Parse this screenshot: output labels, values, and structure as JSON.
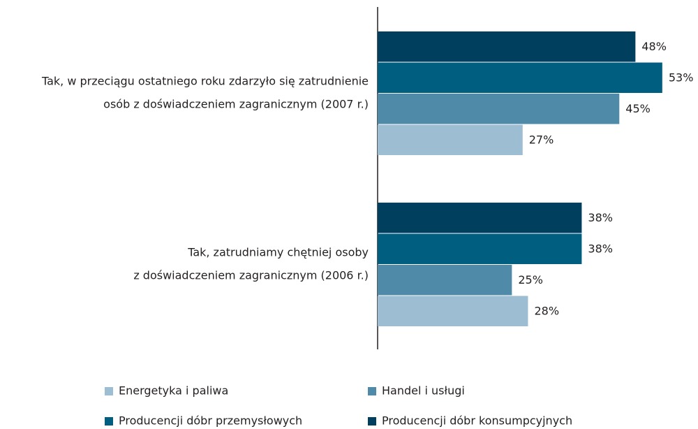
{
  "chart_data": {
    "type": "bar",
    "orientation": "horizontal",
    "categories": [
      [
        "Tak, w przeciągu ostatniego roku zdarzyło się zatrudnienie",
        "osób z doświadczeniem zagranicznym (2007 r.)"
      ],
      [
        "Tak, zatrudniamy chętniej osoby",
        "z doświadczeniem zagranicznym (2006 r.)"
      ]
    ],
    "series": [
      {
        "name": "Energetyka i paliwa",
        "color": "#9dbed2",
        "values": [
          27,
          28
        ],
        "value_labels": [
          "27%",
          "28%"
        ]
      },
      {
        "name": "Handel i usługi",
        "color": "#4f8aa9",
        "values": [
          45,
          25
        ],
        "value_labels": [
          "45%",
          "25%"
        ]
      },
      {
        "name": "Producencji dóbr przemysłowych",
        "color": "#005f80",
        "values": [
          53,
          38
        ],
        "value_labels": [
          "53%",
          "38%"
        ]
      },
      {
        "name": "Producencji dóbr konsumpcyjnych",
        "color": "#003f5e",
        "values": [
          48,
          38
        ],
        "value_labels": [
          "48%",
          "38%"
        ]
      }
    ],
    "xlim": [
      0,
      59
    ]
  }
}
